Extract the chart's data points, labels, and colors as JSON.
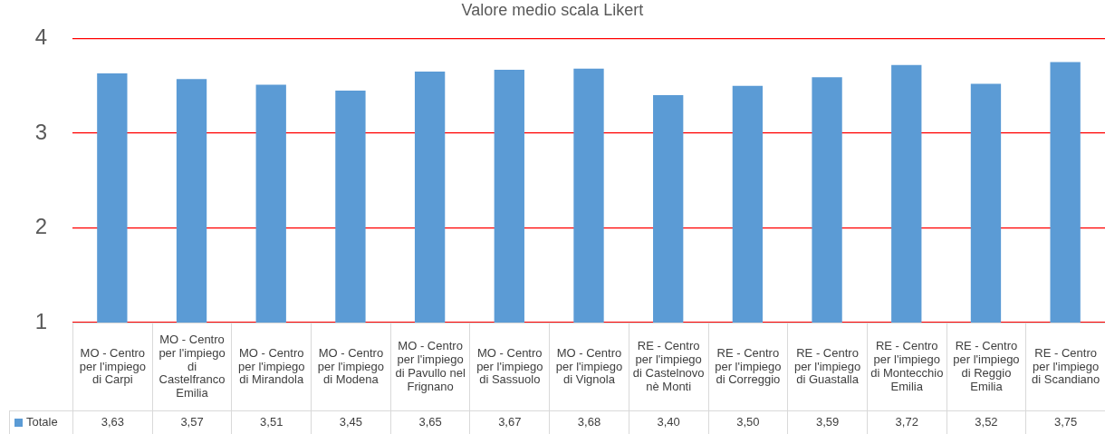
{
  "chart_data": {
    "type": "bar",
    "title": "Valore medio scala Likert",
    "categories": [
      "MO - Centro per l'impiego di Carpi",
      "MO - Centro per l'impiego di Castelfranco Emilia",
      "MO - Centro per l'impiego di Mirandola",
      "MO - Centro per l'impiego di Modena",
      "MO - Centro per l'impiego di Pavullo nel Frignano",
      "MO - Centro per l'impiego di Sassuolo",
      "MO - Centro per l'impiego di Vignola",
      "RE - Centro per l'impiego di Castelnovo nè Monti",
      "RE - Centro per l'impiego di Correggio",
      "RE - Centro per l'impiego di Guastalla",
      "RE - Centro per l'impiego di Montecchio Emilia",
      "RE - Centro per l'impiego di Reggio Emilia",
      "RE - Centro per l'impiego di Scandiano"
    ],
    "series": [
      {
        "name": "Totale",
        "color": "#5b9bd5",
        "values": [
          3.63,
          3.57,
          3.51,
          3.45,
          3.65,
          3.67,
          3.68,
          3.4,
          3.5,
          3.59,
          3.72,
          3.52,
          3.75
        ],
        "value_labels": [
          "3,63",
          "3,57",
          "3,51",
          "3,45",
          "3,65",
          "3,67",
          "3,68",
          "3,40",
          "3,50",
          "3,59",
          "3,72",
          "3,52",
          "3,75"
        ]
      }
    ],
    "ylim": [
      1,
      4
    ],
    "yticks": [
      1,
      2,
      3,
      4
    ],
    "grid": "y",
    "legend": "bottom"
  }
}
